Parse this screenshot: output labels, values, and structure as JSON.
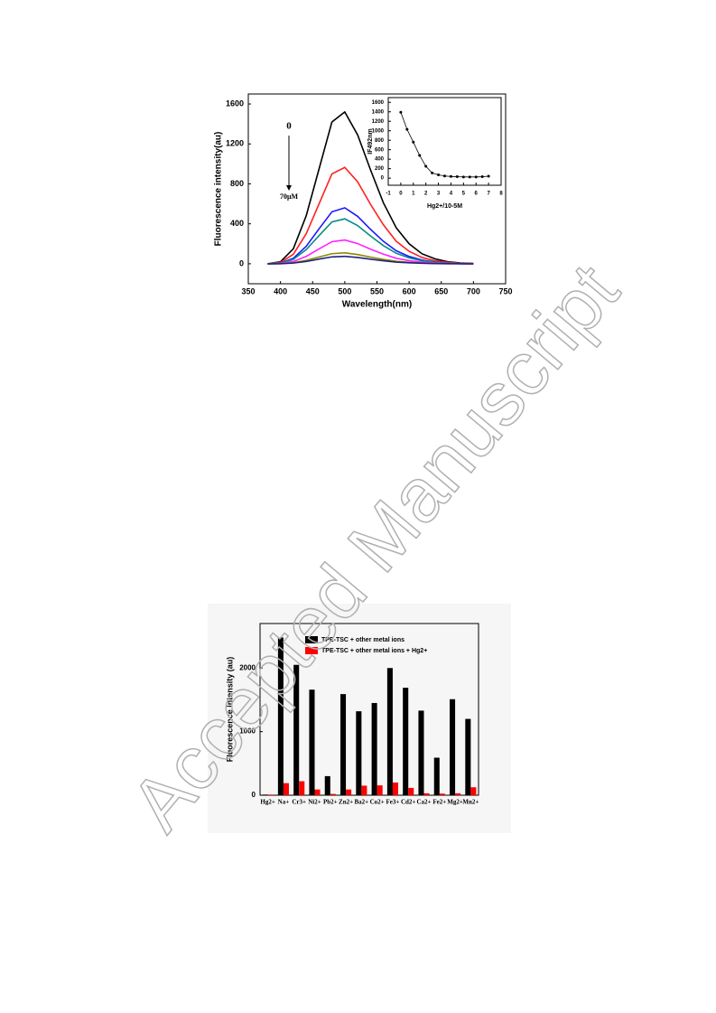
{
  "watermark": "Accepted Manuscript",
  "chart_data": [
    {
      "type": "line",
      "xlabel": "Wavelength(nm)",
      "ylabel": "Fluorescence intensity(au)",
      "annotations": [
        "0",
        "70μM"
      ],
      "xlim": [
        350,
        750
      ],
      "xticks": [
        350,
        400,
        450,
        500,
        550,
        600,
        650,
        700,
        750
      ],
      "ylim": [
        -200,
        1700
      ],
      "yticks": [
        0,
        400,
        800,
        1200,
        1600
      ],
      "x": [
        380,
        400,
        420,
        440,
        460,
        480,
        500,
        520,
        540,
        560,
        580,
        600,
        620,
        640,
        660,
        680,
        700
      ],
      "series": [
        {
          "color": "#000000",
          "values": [
            0,
            20,
            150,
            480,
            950,
            1420,
            1520,
            1290,
            940,
            610,
            360,
            200,
            100,
            50,
            20,
            8,
            3
          ]
        },
        {
          "color": "#ff2020",
          "values": [
            0,
            13,
            95,
            300,
            600,
            900,
            965,
            820,
            595,
            390,
            225,
            125,
            63,
            31,
            13,
            5,
            2
          ]
        },
        {
          "color": "#1a1aff",
          "values": [
            0,
            7,
            55,
            175,
            350,
            520,
            560,
            475,
            345,
            225,
            130,
            73,
            37,
            18,
            7,
            3,
            1
          ]
        },
        {
          "color": "#0a8a8a",
          "values": [
            0,
            6,
            44,
            141,
            282,
            419,
            450,
            382,
            278,
            182,
            105,
            59,
            30,
            15,
            6,
            2,
            1
          ]
        },
        {
          "color": "#ff20ff",
          "values": [
            0,
            3,
            23,
            74,
            149,
            221,
            238,
            202,
            146,
            96,
            55,
            31,
            16,
            8,
            3,
            1,
            0
          ]
        },
        {
          "color": "#8a8a00",
          "values": [
            0,
            1,
            11,
            34,
            68,
            101,
            109,
            92,
            67,
            44,
            25,
            14,
            7,
            4,
            1,
            1,
            0
          ]
        },
        {
          "color": "#202080",
          "values": [
            0,
            1,
            7,
            23,
            47,
            69,
            74,
            63,
            46,
            30,
            17,
            10,
            5,
            2,
            1,
            0,
            0
          ]
        }
      ]
    },
    {
      "type": "scatterline",
      "xlabel": "Hg2+/10-5M",
      "ylabel": "IF492nm",
      "xlim": [
        -1,
        8
      ],
      "xticks": [
        -1,
        0,
        1,
        2,
        3,
        4,
        5,
        6,
        7,
        8
      ],
      "ylim": [
        -150,
        1700
      ],
      "yticks": [
        0,
        200,
        400,
        600,
        800,
        1000,
        1200,
        1400,
        1600
      ],
      "x": [
        0,
        0.5,
        1,
        1.5,
        2,
        2.5,
        3,
        3.5,
        4,
        4.5,
        5,
        5.5,
        6,
        6.5,
        7
      ],
      "series": [
        {
          "color": "#000000",
          "values": [
            1390,
            1030,
            760,
            480,
            250,
            110,
            70,
            45,
            35,
            30,
            25,
            25,
            25,
            30,
            40
          ]
        }
      ]
    },
    {
      "type": "bar",
      "ylabel": "Fluorescence intensity (au)",
      "categories": [
        "Hg2+",
        "Na+",
        "Cr3+",
        "Ni2+",
        "Pb2+",
        "Zn2+",
        "Ba2+",
        "Co2+",
        "Fe3+",
        "Cd2+",
        "Ca2+",
        "Fe2+",
        "Mg2+",
        "Mn2+"
      ],
      "ylim": [
        0,
        2700
      ],
      "yticks": [
        0,
        1000,
        2000
      ],
      "legend": "top-left",
      "series": [
        {
          "name": "TPE-TSC + other metal ions",
          "color": "#000000",
          "values": [
            10,
            2480,
            2050,
            1660,
            300,
            1590,
            1320,
            1450,
            2000,
            1690,
            1330,
            590,
            1510,
            1200
          ]
        },
        {
          "name": "TPE-TSC + other metal ions + Hg2+",
          "color": "#ff0000",
          "values": [
            10,
            190,
            220,
            90,
            20,
            90,
            150,
            155,
            200,
            115,
            30,
            25,
            30,
            125
          ]
        }
      ]
    }
  ]
}
